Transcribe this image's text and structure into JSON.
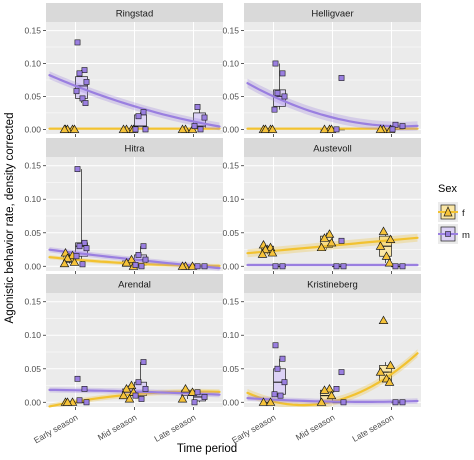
{
  "chart_data": {
    "type": "box-jitter-smooth",
    "xlabel": "Time period",
    "ylabel": "Agonistic behavior rate, density corrected",
    "categories": [
      "Early season",
      "Mid season",
      "Late season"
    ],
    "y_ticks": [
      0.0,
      0.05,
      0.1,
      0.15
    ],
    "y_tick_labels": [
      "0.00",
      "0.05",
      "0.10",
      "0.15"
    ],
    "ylim": [
      -0.007,
      0.163
    ],
    "legend": {
      "title": "Sex",
      "placement": "right",
      "entries": [
        {
          "key": "f",
          "label": "f",
          "color": "#F2C230",
          "fill": "#FBE7A6",
          "stroke": "#1a1a1a"
        },
        {
          "key": "m",
          "label": "m",
          "color": "#9A7FE0",
          "fill": "#DCD2F5",
          "stroke": "#1a1a1a"
        }
      ]
    },
    "colors": {
      "panel_bg": "#ebebeb",
      "grid": "#ffffff",
      "strip_bg": "#d9d9d9",
      "f_line": "#F2C230",
      "m_line": "#9A7FE0",
      "f_point": "#F6C33A",
      "m_point": "#9A7FE0"
    },
    "panels": [
      {
        "title": "Ringstad",
        "boxes": {
          "f": [
            [
              0,
              0,
              0,
              0,
              0
            ],
            [
              0,
              0,
              0,
              0,
              0
            ],
            [
              0,
              0,
              0,
              0,
              0
            ]
          ],
          "m": [
            [
              0.04,
              0.047,
              0.066,
              0.08,
              0.09
            ],
            [
              0,
              0.002,
              0.005,
              0.022,
              0.026
            ],
            [
              0,
              0.001,
              0.005,
              0.025,
              0.034
            ]
          ]
        },
        "points": {
          "f": [
            [
              0,
              0,
              0,
              0,
              0
            ],
            [
              0,
              0,
              0,
              0
            ],
            [
              0,
              0,
              0
            ]
          ],
          "m": [
            [
              0.132,
              0.09,
              0.085,
              0.072,
              0.058,
              0.047,
              0.04
            ],
            [
              0.026,
              0.02,
              0,
              0
            ],
            [
              0.034,
              0.018,
              0.005,
              0
            ]
          ]
        },
        "smooth": {
          "f": [
            0.001,
            0.001,
            0.001
          ],
          "m": [
            0.066,
            0.035,
            0.012
          ]
        },
        "band": {
          "f": 0.002,
          "m": 0.006
        }
      },
      {
        "title": "Helligvaer",
        "boxes": {
          "f": [
            [
              0,
              0,
              0,
              0,
              0
            ],
            [
              0,
              0,
              0,
              0,
              0
            ],
            [
              0,
              0,
              0,
              0,
              0
            ]
          ],
          "m": [
            [
              0.03,
              0.035,
              0.05,
              0.06,
              0.1
            ],
            [
              0,
              0,
              0,
              0,
              0
            ],
            [
              0,
              0,
              0,
              0.005,
              0.007
            ]
          ]
        },
        "points": {
          "f": [
            [
              0,
              0,
              0,
              0
            ],
            [
              0,
              0,
              0
            ],
            [
              0,
              0,
              0
            ]
          ],
          "m": [
            [
              0.1,
              0.085,
              0.055,
              0.05,
              0.03
            ],
            [
              0.078,
              0
            ],
            [
              0.007,
              0.005,
              0
            ]
          ]
        },
        "smooth": {
          "f": [
            0.001,
            0.001,
            0.001
          ],
          "m": [
            0.05,
            0.018,
            0.005
          ]
        },
        "band": {
          "f": 0.002,
          "m": 0.007
        }
      },
      {
        "title": "Hitra",
        "boxes": {
          "f": [
            [
              0.004,
              0.006,
              0.012,
              0.016,
              0.02
            ],
            [
              0,
              0,
              0.004,
              0.008,
              0.01
            ],
            [
              0,
              0,
              0,
              0,
              0
            ]
          ],
          "m": [
            [
              0.003,
              0.015,
              0.03,
              0.035,
              0.145
            ],
            [
              0,
              0.002,
              0.01,
              0.017,
              0.03
            ],
            [
              0,
              0,
              0,
              0,
              0
            ]
          ]
        },
        "points": {
          "f": [
            [
              0.02,
              0.016,
              0.012,
              0.006,
              0.004
            ],
            [
              0.01,
              0.005,
              0
            ],
            [
              0,
              0,
              0
            ]
          ],
          "m": [
            [
              0.145,
              0.035,
              0.03,
              0.027,
              0.015,
              0.003
            ],
            [
              0.03,
              0.017,
              0.01,
              0.002,
              0
            ],
            [
              0,
              0
            ]
          ]
        },
        "smooth": {
          "f": [
            0.01,
            0.004,
            0.001
          ],
          "m": [
            0.02,
            0.01,
            0.001
          ]
        },
        "band": {
          "f": 0.003,
          "m": 0.004
        }
      },
      {
        "title": "Austevoll",
        "boxes": {
          "f": [
            [
              0.018,
              0.02,
              0.025,
              0.03,
              0.032
            ],
            [
              0.025,
              0.028,
              0.038,
              0.045,
              0.05
            ],
            [
              0.005,
              0.015,
              0.03,
              0.045,
              0.05
            ]
          ],
          "m": [
            [
              0,
              0,
              0,
              0,
              0
            ],
            [
              0,
              0,
              0,
              0,
              0
            ],
            [
              0,
              0,
              0,
              0,
              0
            ]
          ]
        },
        "points": {
          "f": [
            [
              0.032,
              0.028,
              0.025,
              0.02,
              0.018
            ],
            [
              0.048,
              0.042,
              0.035,
              0.028
            ],
            [
              0.052,
              0.04,
              0.03,
              0.015,
              0.005
            ]
          ],
          "m": [
            [
              0,
              0
            ],
            [
              0.038,
              0,
              0
            ],
            [
              0,
              0
            ]
          ]
        },
        "smooth": {
          "f": [
            0.023,
            0.031,
            0.039
          ],
          "m": [
            0.002,
            0.002,
            0.002
          ]
        },
        "band": {
          "f": 0.006,
          "m": 0.002
        }
      },
      {
        "title": "Arendal",
        "boxes": {
          "f": [
            [
              0,
              0,
              0,
              0,
              0
            ],
            [
              0.005,
              0.01,
              0.015,
              0.02,
              0.025
            ],
            [
              0.005,
              0.01,
              0.015,
              0.018,
              0.02
            ]
          ],
          "m": [
            [
              0,
              0,
              0,
              0,
              0
            ],
            [
              0.005,
              0.01,
              0.015,
              0.03,
              0.06
            ],
            [
              0,
              0.002,
              0.008,
              0.012,
              0.015
            ]
          ]
        },
        "points": {
          "f": [
            [
              0,
              0,
              0
            ],
            [
              0.025,
              0.02,
              0.015,
              0.01,
              0.005
            ],
            [
              0.02,
              0.015,
              0.005
            ]
          ],
          "m": [
            [
              0.035,
              0.02,
              0.003,
              0
            ],
            [
              0.06,
              0.03,
              0.02,
              0.01,
              0.005
            ],
            [
              0.015,
              0.008,
              0
            ]
          ]
        },
        "smooth": {
          "f": [
            0.001,
            0.012,
            0.016
          ],
          "m": [
            0.018,
            0.016,
            0.013
          ]
        },
        "band": {
          "f": 0.004,
          "m": 0.004
        }
      },
      {
        "title": "Kristineberg",
        "boxes": {
          "f": [
            [
              0,
              0,
              0,
              0,
              0
            ],
            [
              0,
              0,
              0.01,
              0.018,
              0.02
            ],
            [
              0.03,
              0.032,
              0.045,
              0.055,
              0.06
            ]
          ],
          "m": [
            [
              0.01,
              0.012,
              0.03,
              0.05,
              0.065
            ],
            [
              0,
              0,
              0,
              0,
              0
            ],
            [
              0,
              0,
              0,
              0,
              0
            ]
          ]
        },
        "points": {
          "f": [
            [
              0,
              0
            ],
            [
              0.02,
              0.018,
              0.01,
              0
            ],
            [
              0.122,
              0.055,
              0.045,
              0.035,
              0.03
            ]
          ],
          "m": [
            [
              0.085,
              0.065,
              0.05,
              0.03,
              0.012,
              0.01
            ],
            [
              0.045,
              0.02,
              0
            ],
            [
              0,
              0
            ]
          ]
        },
        "smooth": {
          "f": [
            0.001,
            0.001,
            0.042
          ],
          "m": [
            0.004,
            0.001,
            0.001
          ]
        },
        "band": {
          "f": 0.006,
          "m": 0.004
        }
      }
    ]
  }
}
